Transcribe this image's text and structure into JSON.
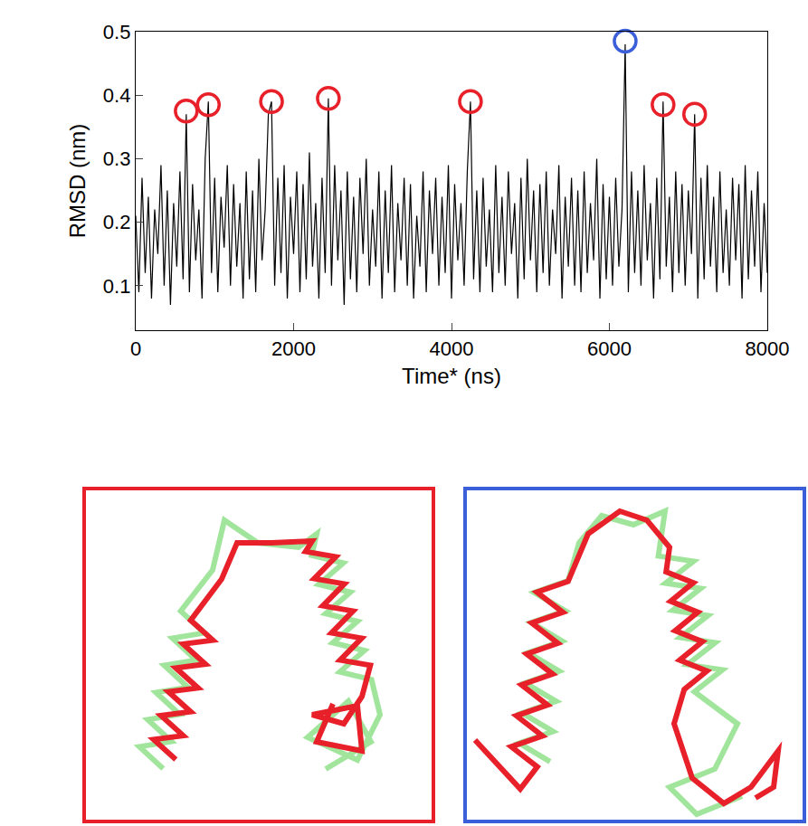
{
  "chart_data": {
    "type": "line",
    "color": "#000000",
    "xlabel": "Time* (ns)",
    "ylabel": "RMSD (nm)",
    "xlim": [
      0,
      8000
    ],
    "ylim": [
      0.03,
      0.5
    ],
    "xticks": [
      0,
      2000,
      4000,
      6000,
      8000
    ],
    "yticks": [
      0.1,
      0.2,
      0.3,
      0.4,
      0.5
    ],
    "grid": false,
    "x": [
      0,
      40,
      80,
      120,
      160,
      200,
      240,
      280,
      320,
      360,
      400,
      440,
      480,
      520,
      560,
      600,
      640,
      680,
      720,
      760,
      800,
      840,
      880,
      920,
      960,
      1000,
      1040,
      1080,
      1120,
      1160,
      1200,
      1240,
      1280,
      1320,
      1360,
      1400,
      1440,
      1480,
      1520,
      1560,
      1600,
      1640,
      1680,
      1720,
      1760,
      1800,
      1840,
      1880,
      1920,
      1960,
      2000,
      2040,
      2080,
      2120,
      2160,
      2200,
      2240,
      2280,
      2320,
      2360,
      2400,
      2440,
      2480,
      2520,
      2560,
      2600,
      2640,
      2680,
      2720,
      2760,
      2800,
      2840,
      2880,
      2920,
      2960,
      3000,
      3040,
      3080,
      3120,
      3160,
      3200,
      3240,
      3280,
      3320,
      3360,
      3400,
      3440,
      3480,
      3520,
      3560,
      3600,
      3640,
      3680,
      3720,
      3760,
      3800,
      3840,
      3880,
      3920,
      3960,
      4000,
      4040,
      4080,
      4120,
      4160,
      4200,
      4240,
      4280,
      4320,
      4360,
      4400,
      4440,
      4480,
      4520,
      4560,
      4600,
      4640,
      4680,
      4720,
      4760,
      4800,
      4840,
      4880,
      4920,
      4960,
      5000,
      5040,
      5080,
      5120,
      5160,
      5200,
      5240,
      5280,
      5320,
      5360,
      5400,
      5440,
      5480,
      5520,
      5560,
      5600,
      5640,
      5680,
      5720,
      5760,
      5800,
      5840,
      5880,
      5920,
      5960,
      6000,
      6040,
      6080,
      6120,
      6160,
      6200,
      6240,
      6280,
      6320,
      6360,
      6400,
      6440,
      6480,
      6520,
      6560,
      6600,
      6640,
      6680,
      6720,
      6760,
      6800,
      6840,
      6880,
      6920,
      6960,
      7000,
      7040,
      7080,
      7120,
      7160,
      7200,
      7240,
      7280,
      7320,
      7360,
      7400,
      7440,
      7480,
      7520,
      7560,
      7600,
      7640,
      7680,
      7720,
      7760,
      7800,
      7840,
      7880,
      7920,
      7960,
      8000
    ],
    "values": [
      0.21,
      0.09,
      0.27,
      0.12,
      0.24,
      0.08,
      0.22,
      0.15,
      0.29,
      0.1,
      0.25,
      0.07,
      0.23,
      0.13,
      0.28,
      0.11,
      0.37,
      0.09,
      0.26,
      0.14,
      0.22,
      0.08,
      0.3,
      0.39,
      0.12,
      0.27,
      0.09,
      0.24,
      0.16,
      0.29,
      0.1,
      0.26,
      0.13,
      0.23,
      0.08,
      0.28,
      0.11,
      0.25,
      0.09,
      0.3,
      0.14,
      0.22,
      0.37,
      0.39,
      0.1,
      0.27,
      0.12,
      0.29,
      0.08,
      0.24,
      0.15,
      0.28,
      0.09,
      0.26,
      0.11,
      0.31,
      0.13,
      0.23,
      0.08,
      0.27,
      0.12,
      0.395,
      0.1,
      0.29,
      0.14,
      0.25,
      0.07,
      0.28,
      0.11,
      0.24,
      0.09,
      0.27,
      0.15,
      0.3,
      0.1,
      0.22,
      0.13,
      0.28,
      0.08,
      0.25,
      0.12,
      0.29,
      0.09,
      0.23,
      0.14,
      0.27,
      0.1,
      0.26,
      0.08,
      0.21,
      0.13,
      0.28,
      0.09,
      0.25,
      0.15,
      0.27,
      0.1,
      0.24,
      0.12,
      0.29,
      0.08,
      0.26,
      0.14,
      0.23,
      0.1,
      0.28,
      0.39,
      0.11,
      0.25,
      0.09,
      0.27,
      0.13,
      0.22,
      0.09,
      0.29,
      0.12,
      0.24,
      0.1,
      0.28,
      0.15,
      0.23,
      0.08,
      0.27,
      0.11,
      0.3,
      0.14,
      0.25,
      0.09,
      0.26,
      0.12,
      0.28,
      0.1,
      0.22,
      0.15,
      0.29,
      0.08,
      0.24,
      0.13,
      0.27,
      0.1,
      0.25,
      0.09,
      0.28,
      0.12,
      0.23,
      0.14,
      0.3,
      0.08,
      0.26,
      0.11,
      0.24,
      0.1,
      0.27,
      0.13,
      0.22,
      0.48,
      0.09,
      0.28,
      0.12,
      0.25,
      0.1,
      0.29,
      0.14,
      0.23,
      0.08,
      0.27,
      0.11,
      0.39,
      0.13,
      0.24,
      0.09,
      0.28,
      0.12,
      0.26,
      0.1,
      0.25,
      0.15,
      0.37,
      0.08,
      0.27,
      0.11,
      0.29,
      0.13,
      0.24,
      0.09,
      0.28,
      0.12,
      0.22,
      0.1,
      0.27,
      0.14,
      0.26,
      0.08,
      0.29,
      0.11,
      0.25,
      0.13,
      0.28,
      0.09,
      0.23,
      0.12
    ],
    "highlights": {
      "x": [
        640,
        920,
        1720,
        2440,
        4240,
        6200,
        6680,
        7080
      ],
      "y": [
        0.375,
        0.385,
        0.39,
        0.395,
        0.39,
        0.485,
        0.385,
        0.37
      ],
      "colors": [
        "#e8202a",
        "#e8202a",
        "#e8202a",
        "#e8202a",
        "#e8202a",
        "#3a5fd9",
        "#e8202a",
        "#e8202a"
      ],
      "marker": "circle-open"
    }
  }
}
